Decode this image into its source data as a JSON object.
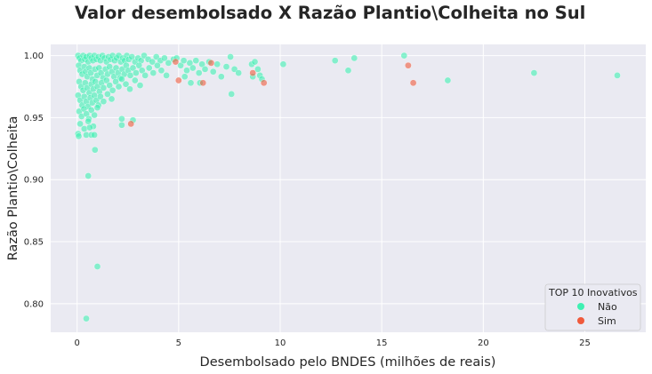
{
  "chart_data": {
    "type": "scatter",
    "title": "Valor desembolsado X Razão Plantio\\Colheita no Sul",
    "xlabel": "Desembolsado pelo BNDES (milhões de reais)",
    "ylabel": "Razão Plantio\\Colheita",
    "xlim": [
      -1.3,
      28
    ],
    "ylim": [
      0.777,
      1.009
    ],
    "xticks": [
      0,
      5,
      10,
      15,
      20,
      25
    ],
    "xtick_labels": [
      "0",
      "5",
      "10",
      "15",
      "20",
      "25"
    ],
    "yticks": [
      0.8,
      0.85,
      0.9,
      0.95,
      1.0
    ],
    "ytick_labels": [
      "0.80",
      "0.85",
      "0.90",
      "0.95",
      "1.00"
    ],
    "grid": true,
    "legend": {
      "title": "TOP 10 Inovativos",
      "position": "lower-right",
      "entries": [
        {
          "label": "Não",
          "color": "#3ff0b2"
        },
        {
          "label": "Sim",
          "color": "#f05a3c"
        }
      ]
    },
    "series": [
      {
        "name": "Não",
        "color": "#3ff0b2",
        "points": [
          [
            0.05,
            1.0
          ],
          [
            0.12,
            0.998
          ],
          [
            0.2,
            0.996
          ],
          [
            0.3,
            1.0
          ],
          [
            0.38,
            0.997
          ],
          [
            0.45,
            0.999
          ],
          [
            0.55,
            0.995
          ],
          [
            0.62,
            1.0
          ],
          [
            0.7,
            0.998
          ],
          [
            0.78,
            0.996
          ],
          [
            0.85,
            1.0
          ],
          [
            0.95,
            0.997
          ],
          [
            1.05,
            0.999
          ],
          [
            1.15,
            0.996
          ],
          [
            1.25,
            1.0
          ],
          [
            1.35,
            0.998
          ],
          [
            1.45,
            0.995
          ],
          [
            1.55,
            0.999
          ],
          [
            1.65,
            0.997
          ],
          [
            1.75,
            1.0
          ],
          [
            1.85,
            0.996
          ],
          [
            1.95,
            0.998
          ],
          [
            2.05,
            1.0
          ],
          [
            2.15,
            0.995
          ],
          [
            2.25,
            0.998
          ],
          [
            2.35,
            0.996
          ],
          [
            2.45,
            1.0
          ],
          [
            2.55,
            0.997
          ],
          [
            2.7,
            0.999
          ],
          [
            2.85,
            0.995
          ],
          [
            3.0,
            0.998
          ],
          [
            3.15,
            0.996
          ],
          [
            3.3,
            1.0
          ],
          [
            3.5,
            0.997
          ],
          [
            3.7,
            0.995
          ],
          [
            3.9,
            0.999
          ],
          [
            4.1,
            0.996
          ],
          [
            4.3,
            0.998
          ],
          [
            4.5,
            0.994
          ],
          [
            4.75,
            0.997
          ],
          [
            0.08,
            0.992
          ],
          [
            0.15,
            0.988
          ],
          [
            0.25,
            0.985
          ],
          [
            0.35,
            0.991
          ],
          [
            0.42,
            0.987
          ],
          [
            0.5,
            0.983
          ],
          [
            0.6,
            0.99
          ],
          [
            0.68,
            0.986
          ],
          [
            0.76,
            0.981
          ],
          [
            0.88,
            0.989
          ],
          [
            0.98,
            0.984
          ],
          [
            1.08,
            0.99
          ],
          [
            1.18,
            0.986
          ],
          [
            1.28,
            0.982
          ],
          [
            1.4,
            0.989
          ],
          [
            1.5,
            0.985
          ],
          [
            1.6,
            0.991
          ],
          [
            1.72,
            0.987
          ],
          [
            1.82,
            0.983
          ],
          [
            1.92,
            0.99
          ],
          [
            2.02,
            0.986
          ],
          [
            2.12,
            0.982
          ],
          [
            2.22,
            0.989
          ],
          [
            2.32,
            0.985
          ],
          [
            2.42,
            0.992
          ],
          [
            2.52,
            0.988
          ],
          [
            2.62,
            0.984
          ],
          [
            2.75,
            0.99
          ],
          [
            2.9,
            0.986
          ],
          [
            3.05,
            0.992
          ],
          [
            3.2,
            0.988
          ],
          [
            3.35,
            0.984
          ],
          [
            3.55,
            0.99
          ],
          [
            3.75,
            0.986
          ],
          [
            3.95,
            0.992
          ],
          [
            4.15,
            0.988
          ],
          [
            4.4,
            0.984
          ],
          [
            0.1,
            0.979
          ],
          [
            0.2,
            0.975
          ],
          [
            0.3,
            0.972
          ],
          [
            0.4,
            0.978
          ],
          [
            0.5,
            0.974
          ],
          [
            0.6,
            0.97
          ],
          [
            0.7,
            0.977
          ],
          [
            0.8,
            0.973
          ],
          [
            0.9,
            0.979
          ],
          [
            1.0,
            0.975
          ],
          [
            1.1,
            0.971
          ],
          [
            1.2,
            0.978
          ],
          [
            1.3,
            0.974
          ],
          [
            1.45,
            0.98
          ],
          [
            1.6,
            0.976
          ],
          [
            1.75,
            0.972
          ],
          [
            1.9,
            0.979
          ],
          [
            2.05,
            0.975
          ],
          [
            2.2,
            0.981
          ],
          [
            2.4,
            0.977
          ],
          [
            2.6,
            0.973
          ],
          [
            2.85,
            0.98
          ],
          [
            3.1,
            0.976
          ],
          [
            0.05,
            0.968
          ],
          [
            0.15,
            0.964
          ],
          [
            0.25,
            0.96
          ],
          [
            0.35,
            0.967
          ],
          [
            0.45,
            0.963
          ],
          [
            0.55,
            0.959
          ],
          [
            0.65,
            0.966
          ],
          [
            0.75,
            0.962
          ],
          [
            0.85,
            0.968
          ],
          [
            0.95,
            0.964
          ],
          [
            1.05,
            0.96
          ],
          [
            1.15,
            0.967
          ],
          [
            1.3,
            0.963
          ],
          [
            1.5,
            0.969
          ],
          [
            1.7,
            0.965
          ],
          [
            0.1,
            0.955
          ],
          [
            0.22,
            0.951
          ],
          [
            0.34,
            0.957
          ],
          [
            0.46,
            0.953
          ],
          [
            0.58,
            0.949
          ],
          [
            0.7,
            0.956
          ],
          [
            0.85,
            0.952
          ],
          [
            1.0,
            0.958
          ],
          [
            0.15,
            0.945
          ],
          [
            0.35,
            0.941
          ],
          [
            0.55,
            0.947
          ],
          [
            0.8,
            0.943
          ],
          [
            0.05,
            0.937
          ],
          [
            0.08,
            0.935
          ],
          [
            0.45,
            0.936
          ],
          [
            0.7,
            0.936
          ],
          [
            0.85,
            0.936
          ],
          [
            0.62,
            0.942
          ],
          [
            0.88,
            0.924
          ],
          [
            0.55,
            0.903
          ],
          [
            1.0,
            0.83
          ],
          [
            0.45,
            0.788
          ],
          [
            2.2,
            0.949
          ],
          [
            2.75,
            0.948
          ],
          [
            2.2,
            0.944
          ],
          [
            4.9,
            0.998
          ],
          [
            5.1,
            0.992
          ],
          [
            5.25,
            0.996
          ],
          [
            5.4,
            0.988
          ],
          [
            5.55,
            0.994
          ],
          [
            5.7,
            0.99
          ],
          [
            5.85,
            0.996
          ],
          [
            6.0,
            0.986
          ],
          [
            6.15,
            0.993
          ],
          [
            6.3,
            0.989
          ],
          [
            6.5,
            0.995
          ],
          [
            6.7,
            0.987
          ],
          [
            6.9,
            0.993
          ],
          [
            7.1,
            0.983
          ],
          [
            7.35,
            0.991
          ],
          [
            7.55,
            0.999
          ],
          [
            7.75,
            0.989
          ],
          [
            7.95,
            0.986
          ],
          [
            5.3,
            0.983
          ],
          [
            5.6,
            0.978
          ],
          [
            6.05,
            0.978
          ],
          [
            7.6,
            0.969
          ],
          [
            8.6,
            0.993
          ],
          [
            8.75,
            0.995
          ],
          [
            8.9,
            0.989
          ],
          [
            9.0,
            0.984
          ],
          [
            9.1,
            0.981
          ],
          [
            8.65,
            0.983
          ],
          [
            10.15,
            0.993
          ],
          [
            12.7,
            0.996
          ],
          [
            13.35,
            0.988
          ],
          [
            13.65,
            0.998
          ],
          [
            16.1,
            1.0
          ],
          [
            18.25,
            0.98
          ],
          [
            22.5,
            0.986
          ],
          [
            26.6,
            0.984
          ]
        ]
      },
      {
        "name": "Sim",
        "color": "#f05a3c",
        "points": [
          [
            2.65,
            0.945
          ],
          [
            4.85,
            0.995
          ],
          [
            5.0,
            0.98
          ],
          [
            6.2,
            0.978
          ],
          [
            6.6,
            0.994
          ],
          [
            8.65,
            0.986
          ],
          [
            9.2,
            0.978
          ],
          [
            16.3,
            0.992
          ],
          [
            16.55,
            0.978
          ]
        ]
      }
    ]
  }
}
